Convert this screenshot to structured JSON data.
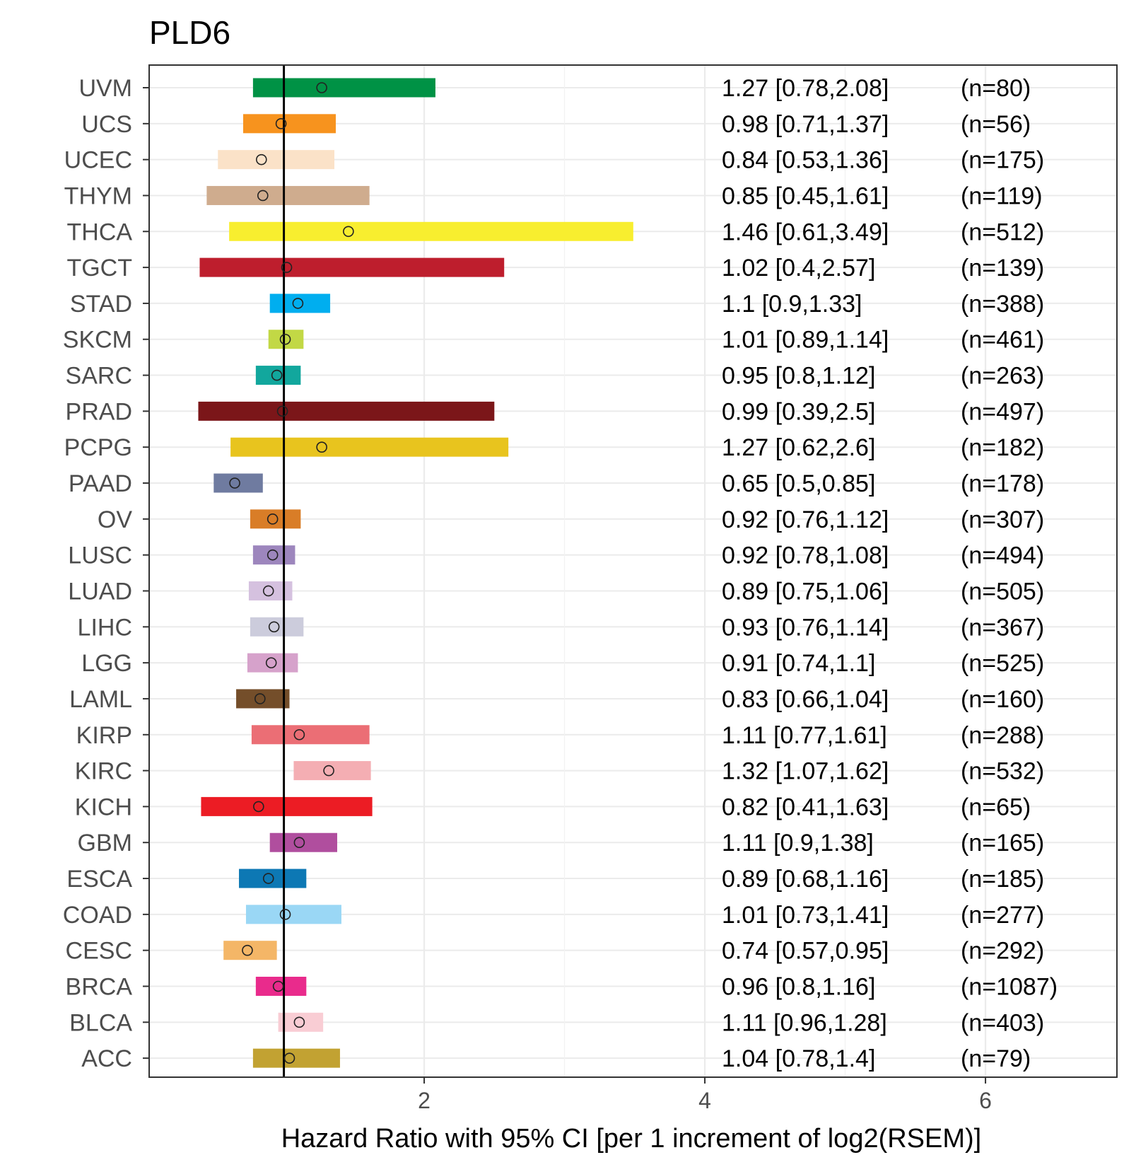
{
  "chart_data": {
    "type": "forest",
    "title": "PLD6",
    "xlabel": "Hazard Ratio with 95% CI [per 1 increment of log2(RSEM)]",
    "ylabel": "",
    "xlim": [
      0.0,
      6.9
    ],
    "x_ticks": [
      2,
      4,
      6
    ],
    "x_tick_labels": [
      "2",
      "4",
      "6"
    ],
    "reference_line": 1,
    "grid": true,
    "categories": [
      "UVM",
      "UCS",
      "UCEC",
      "THYM",
      "THCA",
      "TGCT",
      "STAD",
      "SKCM",
      "SARC",
      "PRAD",
      "PCPG",
      "PAAD",
      "OV",
      "LUSC",
      "LUAD",
      "LIHC",
      "LGG",
      "LAML",
      "KIRP",
      "KIRC",
      "KICH",
      "GBM",
      "ESCA",
      "COAD",
      "CESC",
      "BRCA",
      "BLCA",
      "ACC"
    ],
    "hr": [
      1.27,
      0.98,
      0.84,
      0.85,
      1.46,
      1.02,
      1.1,
      1.01,
      0.95,
      0.99,
      1.27,
      0.65,
      0.92,
      0.92,
      0.89,
      0.93,
      0.91,
      0.83,
      1.11,
      1.32,
      0.82,
      1.11,
      0.89,
      1.01,
      0.74,
      0.96,
      1.11,
      1.04
    ],
    "lower": [
      0.78,
      0.71,
      0.53,
      0.45,
      0.61,
      0.4,
      0.9,
      0.89,
      0.8,
      0.39,
      0.62,
      0.5,
      0.76,
      0.78,
      0.75,
      0.76,
      0.74,
      0.66,
      0.77,
      1.07,
      0.41,
      0.9,
      0.68,
      0.73,
      0.57,
      0.8,
      0.96,
      0.78
    ],
    "upper": [
      2.08,
      1.37,
      1.36,
      1.61,
      3.49,
      2.57,
      1.33,
      1.14,
      1.12,
      2.5,
      2.6,
      0.85,
      1.12,
      1.08,
      1.06,
      1.14,
      1.1,
      1.04,
      1.61,
      1.62,
      1.63,
      1.38,
      1.16,
      1.41,
      0.95,
      1.16,
      1.28,
      1.4
    ],
    "ci_labels": [
      "1.27 [0.78,2.08]",
      "0.98 [0.71,1.37]",
      "0.84 [0.53,1.36]",
      "0.85 [0.45,1.61]",
      "1.46 [0.61,3.49]",
      "1.02 [0.4,2.57]",
      "1.1 [0.9,1.33]",
      "1.01 [0.89,1.14]",
      "0.95 [0.8,1.12]",
      "0.99 [0.39,2.5]",
      "1.27 [0.62,2.6]",
      "0.65 [0.5,0.85]",
      "0.92 [0.76,1.12]",
      "0.92 [0.78,1.08]",
      "0.89 [0.75,1.06]",
      "0.93 [0.76,1.14]",
      "0.91 [0.74,1.1]",
      "0.83 [0.66,1.04]",
      "1.11 [0.77,1.61]",
      "1.32 [1.07,1.62]",
      "0.82 [0.41,1.63]",
      "1.11 [0.9,1.38]",
      "0.89 [0.68,1.16]",
      "1.01 [0.73,1.41]",
      "0.74 [0.57,0.95]",
      "0.96 [0.8,1.16]",
      "1.11 [0.96,1.28]",
      "1.04 [0.78,1.4]"
    ],
    "n_labels": [
      "(n=80)",
      "(n=56)",
      "(n=175)",
      "(n=119)",
      "(n=512)",
      "(n=139)",
      "(n=388)",
      "(n=461)",
      "(n=263)",
      "(n=497)",
      "(n=182)",
      "(n=178)",
      "(n=307)",
      "(n=494)",
      "(n=505)",
      "(n=367)",
      "(n=525)",
      "(n=160)",
      "(n=288)",
      "(n=532)",
      "(n=65)",
      "(n=165)",
      "(n=185)",
      "(n=277)",
      "(n=292)",
      "(n=1087)",
      "(n=403)",
      "(n=79)"
    ],
    "colors": [
      "#009245",
      "#F7931E",
      "#FBE2C8",
      "#CFAC8E",
      "#F8EE2F",
      "#BE1E2D",
      "#00AEEF",
      "#C2D845",
      "#12A79D",
      "#7B1619",
      "#E8C41E",
      "#6F7BA0",
      "#D97D27",
      "#9D86BD",
      "#D5C1DF",
      "#CCCCDC",
      "#D6A2CB",
      "#744E2A",
      "#EB6E75",
      "#F4AEB3",
      "#EC1C24",
      "#B04E9E",
      "#0D78B4",
      "#9AD7F5",
      "#F4B667",
      "#E92B8C",
      "#F9CDD4",
      "#C2A232"
    ]
  }
}
